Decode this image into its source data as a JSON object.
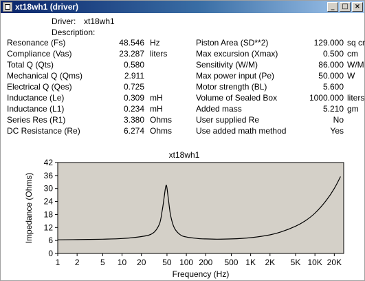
{
  "window": {
    "title": "xt18wh1 (driver)",
    "buttons": [
      "_",
      "□",
      "×"
    ]
  },
  "header": {
    "driver_label": "Driver:",
    "driver_value": "xt18wh1",
    "description_label": "Description:"
  },
  "left_params": [
    {
      "label": "Resonance (Fs)",
      "value": "48.546",
      "unit": "Hz"
    },
    {
      "label": "Compliance (Vas)",
      "value": "23.287",
      "unit": "liters"
    },
    {
      "label": "Total Q (Qts)",
      "value": "0.580",
      "unit": ""
    },
    {
      "label": "Mechanical Q (Qms)",
      "value": "2.911",
      "unit": ""
    },
    {
      "label": "Electrical Q (Qes)",
      "value": "0.725",
      "unit": ""
    },
    {
      "label": "Inductance (Le)",
      "value": "0.309",
      "unit": "mH"
    },
    {
      "label": "Inductance (L1)",
      "value": "0.234",
      "unit": "mH"
    },
    {
      "label": "Series Res (R1)",
      "value": "3.380",
      "unit": "Ohms"
    },
    {
      "label": "DC Resistance (Re)",
      "value": "6.274",
      "unit": "Ohms"
    }
  ],
  "right_params": [
    {
      "label": "Piston Area (SD**2)",
      "value": "129.000",
      "unit": "sq cm"
    },
    {
      "label": "Max excursion (Xmax)",
      "value": "0.500",
      "unit": "cm"
    },
    {
      "label": "Sensitivity (W/M)",
      "value": "86.000",
      "unit": "W/M"
    },
    {
      "label": "Max power input (Pe)",
      "value": "50.000",
      "unit": "W"
    },
    {
      "label": "Motor strength (BL)",
      "value": "5.600",
      "unit": ""
    },
    {
      "label": "Volume of Sealed Box",
      "value": "1000.000",
      "unit": "liters"
    },
    {
      "label": "Added mass",
      "value": "5.210",
      "unit": "gm"
    },
    {
      "label": "User supplied Re",
      "value": "No",
      "unit": ""
    },
    {
      "label": "Use added math method",
      "value": "Yes",
      "unit": ""
    }
  ],
  "colors": {
    "title_bar": "#0a246a",
    "plot_bg": "#d4d0c8",
    "curve": "#000000"
  },
  "chart_data": {
    "type": "line",
    "title": "xt18wh1",
    "xlabel": "Frequency (Hz)",
    "ylabel": "Impedance (Ohms)",
    "x_scale": "log",
    "xlim": [
      1,
      28000
    ],
    "ylim": [
      0,
      42
    ],
    "grid": false,
    "x_ticks": [
      {
        "value": 1,
        "label": "1"
      },
      {
        "value": 2,
        "label": "2"
      },
      {
        "value": 5,
        "label": "5"
      },
      {
        "value": 10,
        "label": "10"
      },
      {
        "value": 20,
        "label": "20"
      },
      {
        "value": 50,
        "label": "50"
      },
      {
        "value": 100,
        "label": "100"
      },
      {
        "value": 200,
        "label": "200"
      },
      {
        "value": 500,
        "label": "500"
      },
      {
        "value": 1000,
        "label": "1K"
      },
      {
        "value": 2000,
        "label": "2K"
      },
      {
        "value": 5000,
        "label": "5K"
      },
      {
        "value": 10000,
        "label": "10K"
      },
      {
        "value": 20000,
        "label": "20K"
      }
    ],
    "y_ticks": [
      0,
      6,
      12,
      18,
      24,
      30,
      36,
      42
    ],
    "series": [
      {
        "x": [
          1,
          2,
          5,
          10,
          20,
          30,
          38,
          42,
          45,
          47,
          48.5,
          50,
          53,
          57,
          65,
          80,
          100,
          150,
          200,
          300,
          500,
          1000,
          2000,
          3000,
          5000,
          7000,
          10000,
          15000,
          20000,
          25000
        ],
        "y": [
          6.3,
          6.4,
          6.6,
          6.9,
          7.8,
          9.3,
          13.5,
          19.5,
          25.5,
          29.7,
          31.5,
          30.3,
          24.2,
          17.5,
          11.8,
          8.7,
          7.6,
          6.9,
          6.7,
          6.6,
          6.7,
          7.3,
          8.6,
          10.0,
          12.6,
          15.0,
          18.6,
          24.5,
          30.0,
          35.5
        ]
      }
    ]
  }
}
